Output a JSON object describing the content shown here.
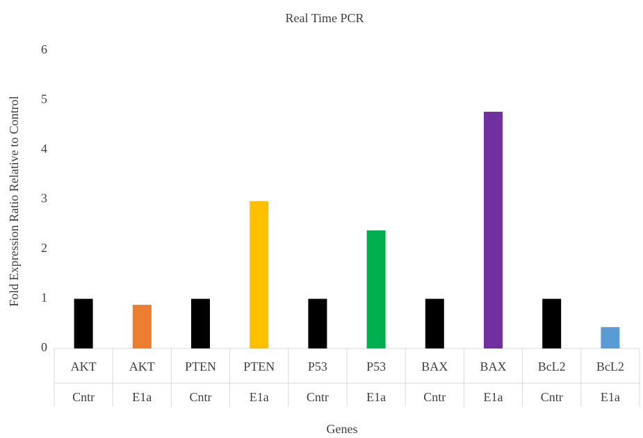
{
  "chart_data": {
    "type": "bar",
    "title": "Real Time PCR",
    "x_label": "Genes",
    "y_label": "Fold Expression Ratio Relative to Control",
    "categories": [
      [
        "AKT",
        "Cntr"
      ],
      [
        "AKT",
        "E1a"
      ],
      [
        "PTEN",
        "Cntr"
      ],
      [
        "PTEN",
        "E1a"
      ],
      [
        "P53",
        "Cntr"
      ],
      [
        "P53",
        "E1a"
      ],
      [
        "BAX",
        "Cntr"
      ],
      [
        "BAX",
        "E1a"
      ],
      [
        "BcL2",
        "Cntr"
      ],
      [
        "BcL2",
        "E1a"
      ]
    ],
    "values": [
      1,
      0.88,
      1,
      2.97,
      1,
      2.38,
      1,
      4.77,
      1,
      0.43
    ],
    "colors": [
      "#000000",
      "#ed7d31",
      "#000000",
      "#ffc000",
      "#000000",
      "#00b050",
      "#000000",
      "#7030a0",
      "#000000",
      "#5b9bd5"
    ],
    "ylim": [
      0,
      6
    ],
    "yticks": [
      0,
      1,
      2,
      3,
      4,
      5,
      6
    ],
    "grid": false
  }
}
